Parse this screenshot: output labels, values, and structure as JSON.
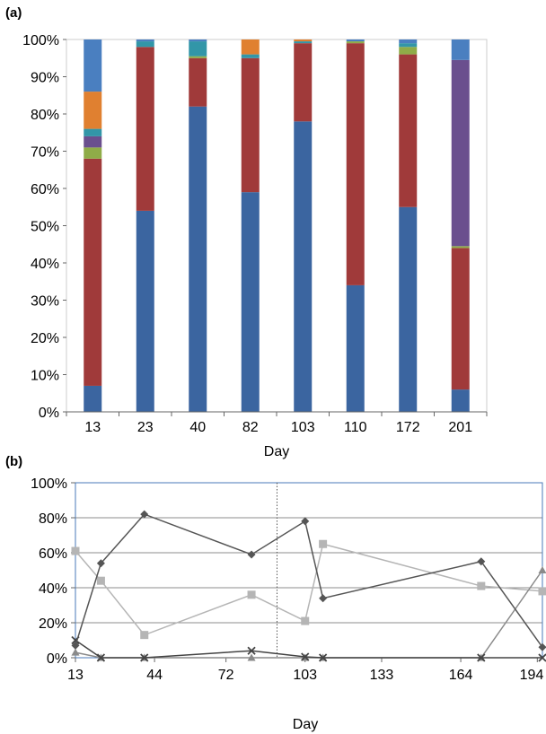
{
  "chart_data": [
    {
      "panel_label": "(a)",
      "type": "bar",
      "stacked": true,
      "categories": [
        "13",
        "23",
        "40",
        "82",
        "103",
        "110",
        "172",
        "201"
      ],
      "xlabel": "Day",
      "ylabel": "",
      "ylim": [
        0,
        100
      ],
      "yticks": [
        "0%",
        "10%",
        "20%",
        "30%",
        "40%",
        "50%",
        "60%",
        "70%",
        "80%",
        "90%",
        "100%"
      ],
      "grid": false,
      "series": [
        {
          "color": "#3b65a0",
          "values": [
            7,
            54,
            82,
            59,
            78,
            34,
            55,
            6
          ]
        },
        {
          "color": "#a03a3a",
          "values": [
            61,
            44,
            13,
            36,
            21,
            65,
            41,
            38
          ]
        },
        {
          "color": "#8fac48",
          "values": [
            3,
            0,
            0.5,
            0,
            0,
            0.5,
            2,
            0.5
          ]
        },
        {
          "color": "#6a4f8e",
          "values": [
            3,
            0,
            0,
            0,
            0,
            0,
            0,
            50
          ]
        },
        {
          "color": "#3296a8",
          "values": [
            2,
            1.5,
            4,
            1,
            0.5,
            0,
            1,
            0
          ]
        },
        {
          "color": "#e08030",
          "values": [
            10,
            0,
            0,
            4,
            0.5,
            0,
            0,
            0
          ]
        },
        {
          "color": "#4a7fc0",
          "values": [
            14,
            0.5,
            0.5,
            0,
            0,
            0.5,
            1,
            5.5
          ]
        }
      ]
    },
    {
      "panel_label": "(b)",
      "type": "line",
      "xlabel": "Day",
      "ylabel": "",
      "xticks": [
        "13",
        "44",
        "72",
        "103",
        "133",
        "164",
        "194"
      ],
      "xlim": [
        13,
        196
      ],
      "ylim": [
        0,
        100
      ],
      "yticks": [
        "0%",
        "20%",
        "40%",
        "60%",
        "80%",
        "100%"
      ],
      "grid": true,
      "reference_line_x": 92,
      "series": [
        {
          "marker": "diamond",
          "color": "#555555",
          "x": [
            13,
            23,
            40,
            82,
            103,
            110,
            172,
            201
          ],
          "y": [
            7,
            54,
            82,
            59,
            78,
            34,
            55,
            6
          ]
        },
        {
          "marker": "square",
          "color": "#b5b5b5",
          "x": [
            13,
            23,
            40,
            82,
            103,
            110,
            172,
            201
          ],
          "y": [
            61,
            44,
            13,
            36,
            21,
            65,
            41,
            38
          ]
        },
        {
          "marker": "triangle",
          "color": "#8a8a8a",
          "x": [
            13,
            23,
            40,
            82,
            103,
            110,
            172,
            201
          ],
          "y": [
            3,
            0,
            0,
            0,
            0,
            0,
            0,
            50
          ]
        },
        {
          "marker": "x",
          "color": "#444444",
          "x": [
            13,
            23,
            40,
            82,
            103,
            110,
            172,
            201
          ],
          "y": [
            10,
            0,
            0,
            4,
            0.5,
            0,
            0,
            0
          ]
        }
      ]
    }
  ]
}
